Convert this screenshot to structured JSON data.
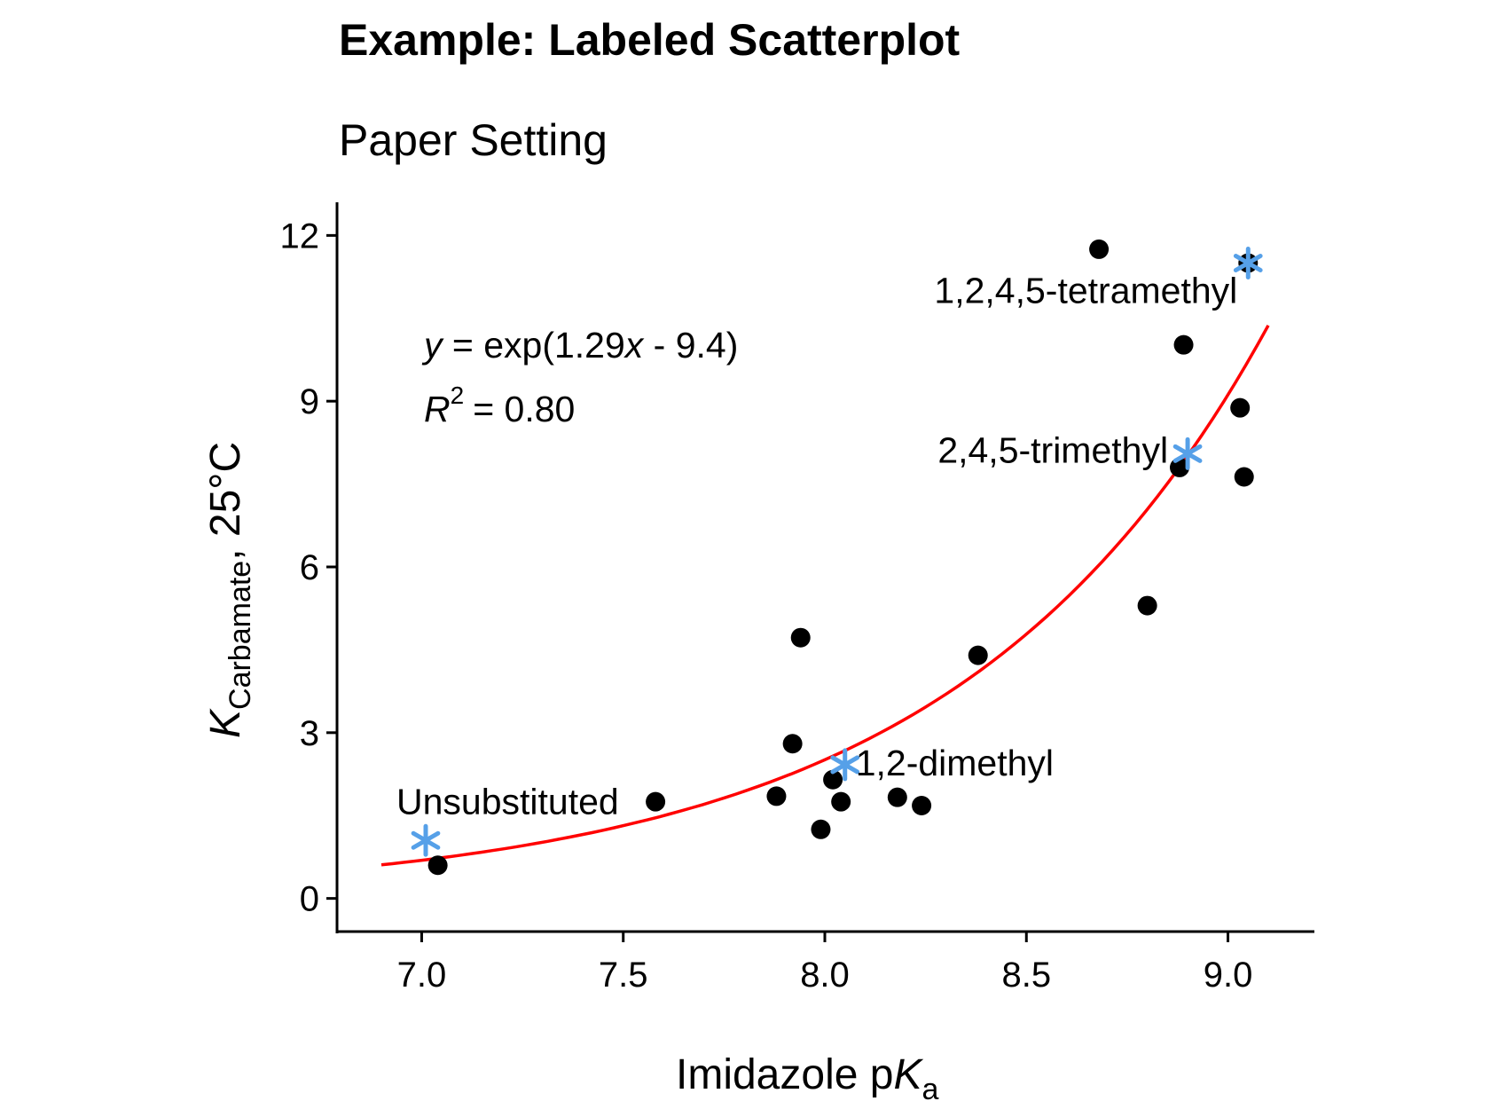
{
  "chart_data": {
    "type": "scatter",
    "title": "Example: Labeled Scatterplot",
    "subtitle": "Paper Setting",
    "xlabel": {
      "main": "Imidazole p",
      "italic": "K",
      "sub": "a"
    },
    "ylabel": {
      "italic": "K",
      "sub": "Carbamate",
      "rest": ", 25°C"
    },
    "xlim": [
      6.79,
      9.21
    ],
    "ylim": [
      -0.6,
      12.6
    ],
    "x_ticks": [
      {
        "value": 7.0,
        "label": "7.0"
      },
      {
        "value": 7.5,
        "label": "7.5"
      },
      {
        "value": 8.0,
        "label": "8.0"
      },
      {
        "value": 8.5,
        "label": "8.5"
      },
      {
        "value": 9.0,
        "label": "9.0"
      }
    ],
    "y_ticks": [
      {
        "value": 0,
        "label": "0"
      },
      {
        "value": 3,
        "label": "3"
      },
      {
        "value": 6,
        "label": "6"
      },
      {
        "value": 9,
        "label": "9"
      },
      {
        "value": 12,
        "label": "12"
      }
    ],
    "grid": false,
    "points": [
      {
        "x": 7.04,
        "y": 0.6
      },
      {
        "x": 7.58,
        "y": 1.75
      },
      {
        "x": 7.88,
        "y": 1.85
      },
      {
        "x": 7.92,
        "y": 2.8
      },
      {
        "x": 7.94,
        "y": 4.72
      },
      {
        "x": 7.99,
        "y": 1.25
      },
      {
        "x": 8.02,
        "y": 2.15
      },
      {
        "x": 8.04,
        "y": 1.75
      },
      {
        "x": 8.18,
        "y": 1.83
      },
      {
        "x": 8.24,
        "y": 1.68
      },
      {
        "x": 8.38,
        "y": 4.4
      },
      {
        "x": 8.68,
        "y": 11.75
      },
      {
        "x": 8.8,
        "y": 5.3
      },
      {
        "x": 8.88,
        "y": 7.8
      },
      {
        "x": 8.89,
        "y": 10.02
      },
      {
        "x": 9.03,
        "y": 8.88
      },
      {
        "x": 9.04,
        "y": 7.63
      },
      {
        "x": 9.05,
        "y": 11.5
      }
    ],
    "highlighted": [
      {
        "x": 7.01,
        "y": 1.05,
        "label": "Unsubstituted"
      },
      {
        "x": 8.05,
        "y": 2.42,
        "label": "1,2-dimethyl"
      },
      {
        "x": 8.9,
        "y": 8.05,
        "label": "2,4,5-trimethyl"
      },
      {
        "x": 9.05,
        "y": 11.5,
        "label": "1,2,4,5-tetramethyl"
      }
    ],
    "fit": {
      "equation": "y = exp(1.29x - 9.4)",
      "a": 1.29,
      "b": -9.4,
      "x_range": [
        6.9,
        9.1
      ],
      "r2_label": "R",
      "r2_sup": "2",
      "r2_value": "= 0.80",
      "eq_parts": {
        "y": "y",
        "mid": " = exp(1.29",
        "x": "x",
        "end": " - 9.4)"
      }
    },
    "colors": {
      "points": "#000000",
      "highlight": "#56a0e8",
      "fit_line": "#ff0000",
      "axis": "#000000"
    }
  }
}
